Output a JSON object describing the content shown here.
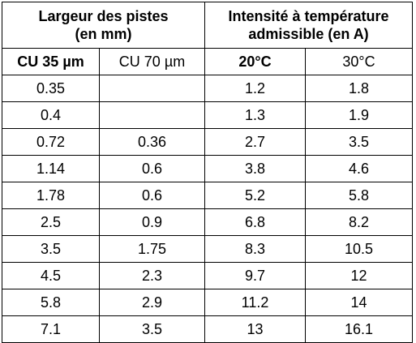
{
  "table": {
    "group_headers": [
      {
        "line1": "Largeur des pistes",
        "line2": "(en mm)"
      },
      {
        "line1": "Intensité à température",
        "line2": "admissible (en A)"
      }
    ],
    "sub_headers": [
      "CU 35 µm",
      "CU 70 µm",
      "20°C",
      "30°C"
    ],
    "rows": [
      [
        "0.35",
        "",
        "1.2",
        "1.8"
      ],
      [
        "0.4",
        "",
        "1.3",
        "1.9"
      ],
      [
        "0.72",
        "0.36",
        "2.7",
        "3.5"
      ],
      [
        "1.14",
        "0.6",
        "3.8",
        "4.6"
      ],
      [
        "1.78",
        "0.6",
        "5.2",
        "5.8"
      ],
      [
        "2.5",
        "0.9",
        "6.8",
        "8.2"
      ],
      [
        "3.5",
        "1.75",
        "8.3",
        "10.5"
      ],
      [
        "4.5",
        "2.3",
        "9.7",
        "12"
      ],
      [
        "5.8",
        "2.9",
        "11.2",
        "14"
      ],
      [
        "7.1",
        "3.5",
        "13",
        "16.1"
      ]
    ]
  }
}
